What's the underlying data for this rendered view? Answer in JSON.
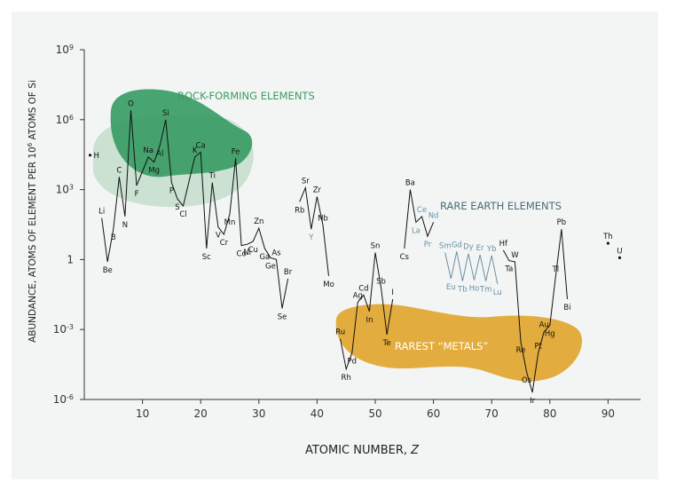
{
  "chart_data": {
    "type": "line",
    "xlabel": "ATOMIC NUMBER, ",
    "xlabel_symbol": "Z",
    "ylabel": "ABUNDANCE, ATOMS OF ELEMENT PER 10",
    "ylabel_sup": "6",
    "ylabel_tail": " ATOMS OF Si",
    "yscale": "log",
    "xlim": [
      0,
      95
    ],
    "ylim": [
      1e-06,
      1000000000.0
    ],
    "x_ticks": [
      10,
      20,
      30,
      40,
      50,
      60,
      70,
      80,
      90
    ],
    "y_ticks": [
      {
        "value": 1000000000.0,
        "base": "10",
        "exp": "9"
      },
      {
        "value": 1000000.0,
        "base": "10",
        "exp": "6"
      },
      {
        "value": 1000.0,
        "base": "10",
        "exp": "3"
      },
      {
        "value": 1,
        "base": "1",
        "exp": ""
      },
      {
        "value": 0.001,
        "base": "10",
        "exp": "-3"
      },
      {
        "value": 1e-06,
        "base": "10",
        "exp": "-6"
      }
    ],
    "regions": [
      {
        "label": "ROCK-FORMING ELEMENTS",
        "color": "#3a9c64"
      },
      {
        "label": "RARE EARTH ELEMENTS",
        "color": "#4b6b78"
      },
      {
        "label": "RAREST “METALS”",
        "color": "#e1a52e"
      }
    ],
    "line_segments": [
      [
        {
          "z": 3,
          "s": "Li",
          "y": 60
        },
        {
          "z": 4,
          "s": "Be",
          "y": 0.8
        },
        {
          "z": 5,
          "s": "B",
          "y": 20
        },
        {
          "z": 6,
          "s": "C",
          "y": 3500
        },
        {
          "z": 7,
          "s": "N",
          "y": 70
        },
        {
          "z": 8,
          "s": "O",
          "y": 2500000
        },
        {
          "z": 9,
          "s": "F",
          "y": 1500
        },
        {
          "z": 11,
          "s": "Na",
          "y": 25000
        },
        {
          "z": 12,
          "s": "Mg",
          "y": 15000
        },
        {
          "z": 13,
          "s": "Al",
          "y": 80000
        },
        {
          "z": 14,
          "s": "Si",
          "y": 1000000
        },
        {
          "z": 15,
          "s": "P",
          "y": 2000
        },
        {
          "z": 16,
          "s": "S",
          "y": 400
        },
        {
          "z": 17,
          "s": "Cl",
          "y": 200
        },
        {
          "z": 19,
          "s": "K",
          "y": 25000
        },
        {
          "z": 20,
          "s": "Ca",
          "y": 40000
        },
        {
          "z": 21,
          "s": "Sc",
          "y": 3
        },
        {
          "z": 22,
          "s": "Ti",
          "y": 2000
        },
        {
          "z": 23,
          "s": "V",
          "y": 25
        },
        {
          "z": 24,
          "s": "Cr",
          "y": 12
        },
        {
          "z": 25,
          "s": "Mn",
          "y": 90
        },
        {
          "z": 26,
          "s": "Fe",
          "y": 22000
        },
        {
          "z": 27,
          "s": "Co",
          "y": 4
        },
        {
          "z": 28,
          "s": "Ni",
          "y": 4.5
        },
        {
          "z": 29,
          "s": "Cu",
          "y": 6
        },
        {
          "z": 30,
          "s": "Zn",
          "y": 22
        },
        {
          "z": 31,
          "s": "Ga",
          "y": 3
        },
        {
          "z": 32,
          "s": "Ge",
          "y": 1.2
        },
        {
          "z": 33,
          "s": "As",
          "y": 1
        },
        {
          "z": 34,
          "s": "Se",
          "y": 0.008
        },
        {
          "z": 35,
          "s": "Br",
          "y": 0.15
        }
      ],
      [
        {
          "z": 37,
          "s": "Rb",
          "y": 300
        },
        {
          "z": 38,
          "s": "Sr",
          "y": 1200
        },
        {
          "z": 39,
          "s": "Y",
          "y": 20
        },
        {
          "z": 40,
          "s": "Zr",
          "y": 500
        },
        {
          "z": 41,
          "s": "Nb",
          "y": 30
        },
        {
          "z": 42,
          "s": "Mo",
          "y": 0.2
        }
      ],
      [
        {
          "z": 44,
          "s": "Ru",
          "y": 0.0004
        },
        {
          "z": 45,
          "s": "Rh",
          "y": 2e-05
        },
        {
          "z": 46,
          "s": "Pd",
          "y": 0.0001
        },
        {
          "z": 47,
          "s": "Ag",
          "y": 0.015
        },
        {
          "z": 48,
          "s": "Cd",
          "y": 0.03
        },
        {
          "z": 49,
          "s": "In",
          "y": 0.006
        },
        {
          "z": 50,
          "s": "Sn",
          "y": 2
        },
        {
          "z": 51,
          "s": "Sb",
          "y": 0.06
        },
        {
          "z": 52,
          "s": "Te",
          "y": 0.0006
        },
        {
          "z": 53,
          "s": "I",
          "y": 0.02
        }
      ],
      [
        {
          "z": 55,
          "s": "Cs",
          "y": 3
        },
        {
          "z": 56,
          "s": "Ba",
          "y": 1000
        },
        {
          "z": 57,
          "s": "La",
          "y": 40
        },
        {
          "z": 58,
          "s": "Ce",
          "y": 70
        },
        {
          "z": 59,
          "s": "Pr",
          "y": 10
        },
        {
          "z": 60,
          "s": "Nd",
          "y": 40
        }
      ],
      [
        {
          "z": 62,
          "s": "Sm",
          "y": 2
        },
        {
          "z": 63,
          "s": "Eu",
          "y": 0.15
        },
        {
          "z": 64,
          "s": "Gd",
          "y": 2.2
        },
        {
          "z": 65,
          "s": "Tb",
          "y": 0.12
        },
        {
          "z": 66,
          "s": "Dy",
          "y": 1.8
        },
        {
          "z": 67,
          "s": "Ho",
          "y": 0.13
        },
        {
          "z": 68,
          "s": "Er",
          "y": 1.6
        },
        {
          "z": 69,
          "s": "Tm",
          "y": 0.12
        },
        {
          "z": 70,
          "s": "Yb",
          "y": 1.5
        },
        {
          "z": 71,
          "s": "Lu",
          "y": 0.09
        }
      ],
      [
        {
          "z": 72,
          "s": "Hf",
          "y": 2.5
        },
        {
          "z": 73,
          "s": "Ta",
          "y": 0.9
        },
        {
          "z": 74,
          "s": "W",
          "y": 0.8
        },
        {
          "z": 75,
          "s": "Re",
          "y": 0.0003
        },
        {
          "z": 76,
          "s": "Os",
          "y": 1.5e-05
        },
        {
          "z": 77,
          "s": "Ir",
          "y": 2e-06
        },
        {
          "z": 78,
          "s": "Pt",
          "y": 0.0001
        },
        {
          "z": 79,
          "s": "Au",
          "y": 0.0008
        },
        {
          "z": 80,
          "s": "Hg",
          "y": 0.0015
        },
        {
          "z": 81,
          "s": "Tl",
          "y": 0.2
        },
        {
          "z": 82,
          "s": "Pb",
          "y": 20
        },
        {
          "z": 83,
          "s": "Bi",
          "y": 0.02
        }
      ]
    ],
    "points": [
      {
        "z": 1,
        "s": "H",
        "y": 30000
      },
      {
        "z": 90,
        "s": "Th",
        "y": 5
      },
      {
        "z": 92,
        "s": "U",
        "y": 1.2
      }
    ],
    "blue_labels": [
      "Y",
      "La",
      "Ce",
      "Pr",
      "Nd",
      "Sm",
      "Eu",
      "Gd",
      "Tb",
      "Dy",
      "Ho",
      "Er",
      "Tm",
      "Yb",
      "Lu"
    ]
  }
}
